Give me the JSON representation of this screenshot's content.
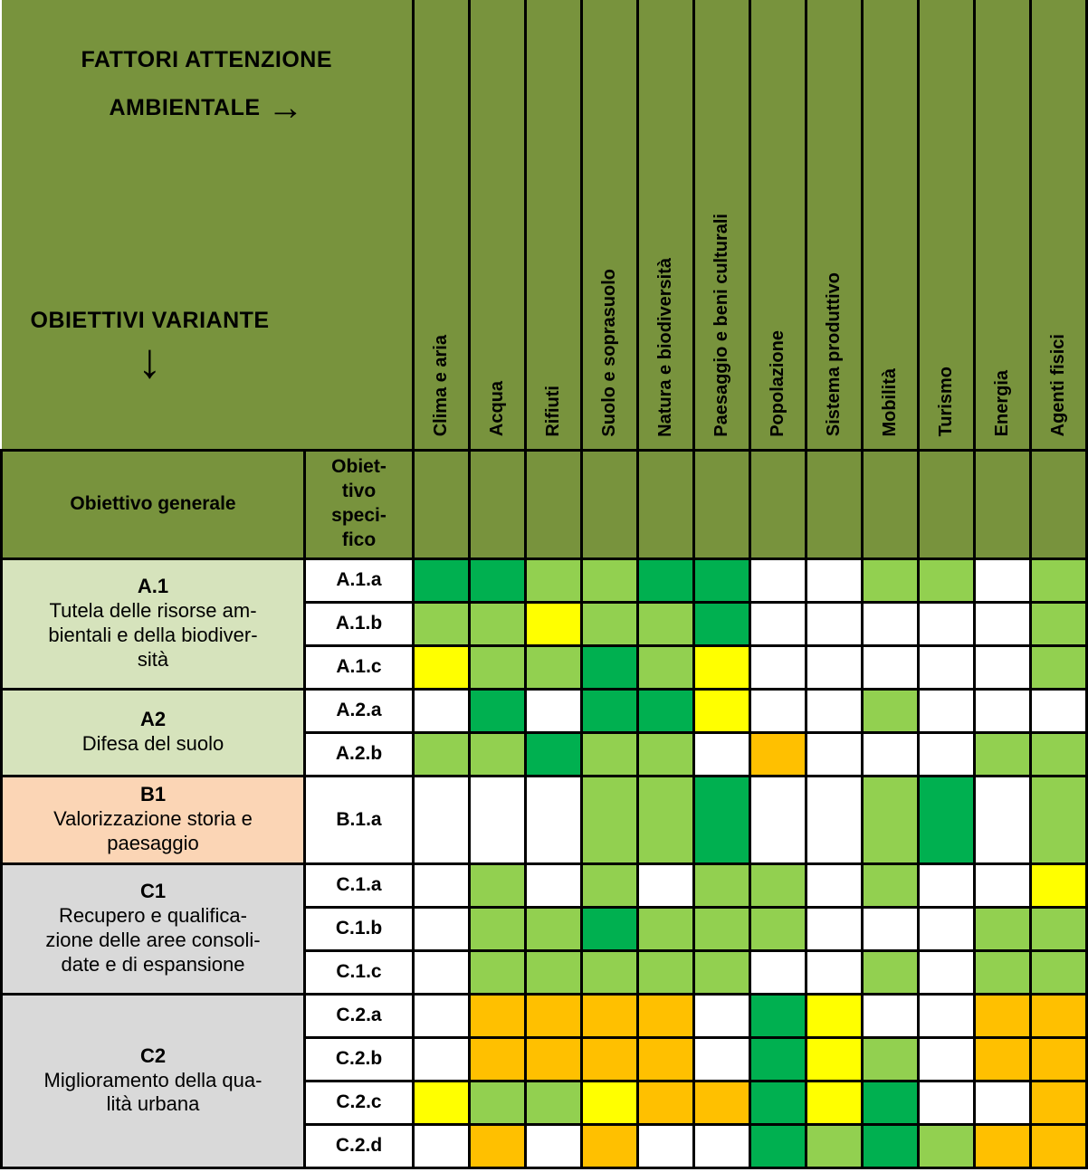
{
  "header": {
    "factors_line1": "FATTORI ATTENZIONE",
    "factors_line2": "AMBIENTALE",
    "right_arrow": "→",
    "objectives_label": "OBIETTIVI VARIANTE",
    "down_arrow": "↓",
    "general_label": "Obiettivo generale",
    "specific_label": "Obiet-\ntivo\nspeci-\nfico"
  },
  "columns": [
    "Clima e aria",
    "Acqua",
    "Rifiuti",
    "Suolo e soprasuolo",
    "Natura e biodiversità",
    "Paesaggio e beni culturali",
    "Popolazione",
    "Sistema produttivo",
    "Mobilità",
    "Turismo",
    "Energia",
    "Agenti fisici"
  ],
  "colors": {
    "DG": "#00B050",
    "LG": "#92D050",
    "Y": "#FFFF00",
    "O": "#FFC000",
    "W": "#FFFFFF",
    "olive_header": "#78933D",
    "group_green": "#D6E3BC",
    "group_peach": "#FBD5B5",
    "group_gray": "#D9D9D9",
    "border": "#000000"
  },
  "groups": [
    {
      "code": "A.1",
      "description": "Tutela delle risorse am-\nbientali e della biodiver-\nsità",
      "bg": "group_green",
      "rows": [
        {
          "code": "A.1.a",
          "cells": [
            "DG",
            "DG",
            "LG",
            "LG",
            "DG",
            "DG",
            "W",
            "W",
            "LG",
            "LG",
            "W",
            "LG"
          ]
        },
        {
          "code": "A.1.b",
          "cells": [
            "LG",
            "LG",
            "Y",
            "LG",
            "LG",
            "DG",
            "W",
            "W",
            "W",
            "W",
            "W",
            "LG"
          ]
        },
        {
          "code": "A.1.c",
          "cells": [
            "Y",
            "LG",
            "LG",
            "DG",
            "LG",
            "Y",
            "W",
            "W",
            "W",
            "W",
            "W",
            "LG"
          ]
        }
      ]
    },
    {
      "code": "A2",
      "description": "Difesa del suolo",
      "bg": "group_green",
      "rows": [
        {
          "code": "A.2.a",
          "cells": [
            "W",
            "DG",
            "W",
            "DG",
            "DG",
            "Y",
            "W",
            "W",
            "LG",
            "W",
            "W",
            "W"
          ]
        },
        {
          "code": "A.2.b",
          "cells": [
            "LG",
            "LG",
            "DG",
            "LG",
            "LG",
            "W",
            "O",
            "W",
            "W",
            "W",
            "LG",
            "LG"
          ]
        }
      ]
    },
    {
      "code": "B1",
      "description": "Valorizzazione storia e\npaesaggio",
      "bg": "group_peach",
      "rows": [
        {
          "code": "B.1.a",
          "tall": true,
          "cells": [
            "W",
            "W",
            "W",
            "LG",
            "LG",
            "DG",
            "W",
            "W",
            "LG",
            "DG",
            "W",
            "LG"
          ]
        }
      ]
    },
    {
      "code": "C1",
      "description": "Recupero e qualifica-\nzione delle aree consoli-\ndate e di espansione",
      "bg": "group_gray",
      "rows": [
        {
          "code": "C.1.a",
          "cells": [
            "W",
            "LG",
            "W",
            "LG",
            "W",
            "LG",
            "LG",
            "W",
            "LG",
            "W",
            "W",
            "Y"
          ]
        },
        {
          "code": "C.1.b",
          "cells": [
            "W",
            "LG",
            "LG",
            "DG",
            "LG",
            "LG",
            "LG",
            "W",
            "W",
            "W",
            "LG",
            "LG"
          ]
        },
        {
          "code": "C.1.c",
          "cells": [
            "W",
            "LG",
            "LG",
            "LG",
            "LG",
            "LG",
            "W",
            "W",
            "LG",
            "W",
            "LG",
            "LG"
          ]
        }
      ]
    },
    {
      "code": "C2",
      "description": "Miglioramento della qua-\nlità urbana",
      "bg": "group_gray",
      "rows": [
        {
          "code": "C.2.a",
          "cells": [
            "W",
            "O",
            "O",
            "O",
            "O",
            "W",
            "DG",
            "Y",
            "W",
            "W",
            "O",
            "O"
          ]
        },
        {
          "code": "C.2.b",
          "cells": [
            "W",
            "O",
            "O",
            "O",
            "O",
            "W",
            "DG",
            "Y",
            "LG",
            "W",
            "O",
            "O"
          ]
        },
        {
          "code": "C.2.c",
          "cells": [
            "Y",
            "LG",
            "LG",
            "Y",
            "O",
            "O",
            "DG",
            "Y",
            "DG",
            "W",
            "W",
            "O"
          ]
        },
        {
          "code": "C.2.d",
          "cells": [
            "W",
            "O",
            "W",
            "O",
            "W",
            "W",
            "DG",
            "LG",
            "DG",
            "LG",
            "O",
            "O"
          ]
        }
      ]
    }
  ]
}
